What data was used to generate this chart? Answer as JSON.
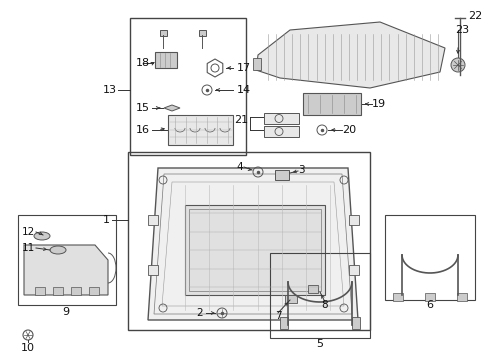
{
  "background_color": "#ffffff",
  "fig_width": 4.89,
  "fig_height": 3.6,
  "dpi": 100,
  "line_color": "#333333",
  "part_color": "#555555",
  "fill_light": "#e8e8e8",
  "fill_mid": "#cccccc",
  "fill_dark": "#999999"
}
